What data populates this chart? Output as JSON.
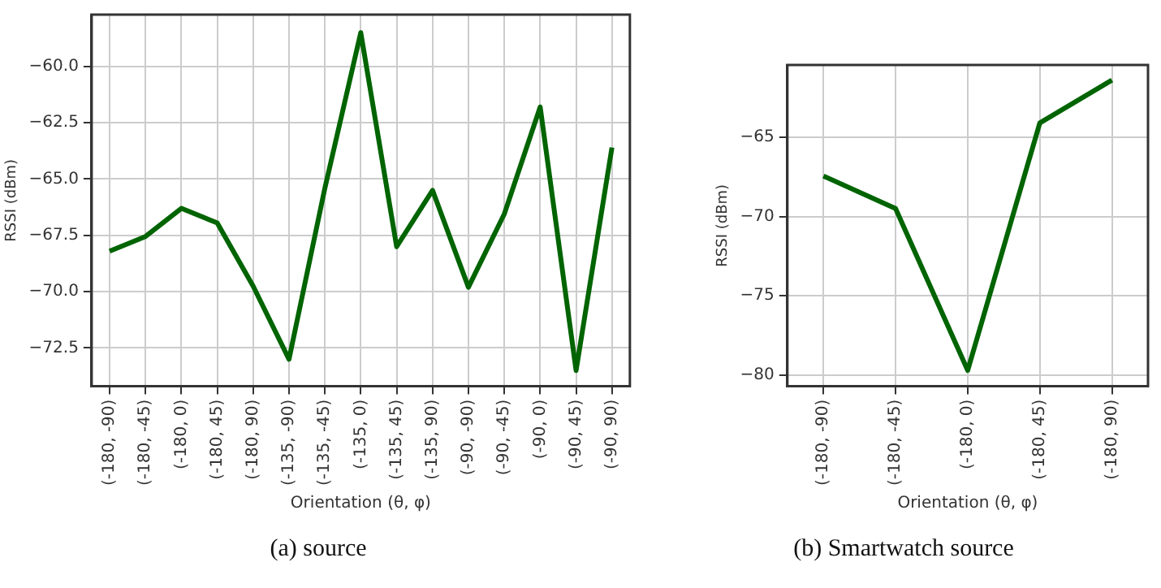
{
  "chart_data": [
    {
      "type": "line",
      "xlabel": "Orientation (θ, φ)",
      "ylabel": "RSSI (dBm)",
      "categories": [
        "(-180, -90)",
        "(-180, -45)",
        "(-180, 0)",
        "(-180, 45)",
        "(-180, 90)",
        "(-135, -90)",
        "(-135, -45)",
        "(-135, 0)",
        "(-135, 45)",
        "(-135, 90)",
        "(-90, -90)",
        "(-90, -45)",
        "(-90, 0)",
        "(-90, 45)",
        "(-90, 90)"
      ],
      "series": [
        {
          "color": "#006400",
          "values": [
            -68.2,
            -67.55,
            -66.3,
            -66.95,
            -69.75,
            -73.0,
            -65.4,
            -58.5,
            -68.0,
            -65.5,
            -69.8,
            -66.55,
            -61.8,
            -73.5,
            -63.6
          ]
        }
      ],
      "ylim": [
        -74.2,
        -57.7
      ],
      "yticks": [
        {
          "value": -72.5,
          "label": "−72.5"
        },
        {
          "value": -70,
          "label": "−70.0"
        },
        {
          "value": -67.5,
          "label": "−67.5"
        },
        {
          "value": -65,
          "label": "−65.0"
        },
        {
          "value": -62.5,
          "label": "−62.5"
        },
        {
          "value": -60,
          "label": "−60.0"
        }
      ],
      "grid": true,
      "legend": false,
      "marker": "none",
      "line_style": "solid",
      "annotations": [
        "(a) source"
      ]
    },
    {
      "type": "line",
      "xlabel": "Orientation (θ, φ)",
      "ylabel": "RSSI (dBm)",
      "categories": [
        "(-180, -90)",
        "(-180, -45)",
        "(-180, 0)",
        "(-180, 45)",
        "(-180, 90)"
      ],
      "series": [
        {
          "color": "#006400",
          "values": [
            -67.45,
            -69.5,
            -79.7,
            -64.1,
            -61.4
          ]
        }
      ],
      "ylim": [
        -80.7,
        -60.45
      ],
      "yticks": [
        {
          "value": -80,
          "label": "−80"
        },
        {
          "value": -75,
          "label": "−75"
        },
        {
          "value": -70,
          "label": "−70"
        },
        {
          "value": -65,
          "label": "−65"
        }
      ],
      "grid": true,
      "legend": false,
      "marker": "none",
      "line_style": "solid",
      "annotations": [
        "(b) Smartwatch source"
      ]
    }
  ]
}
